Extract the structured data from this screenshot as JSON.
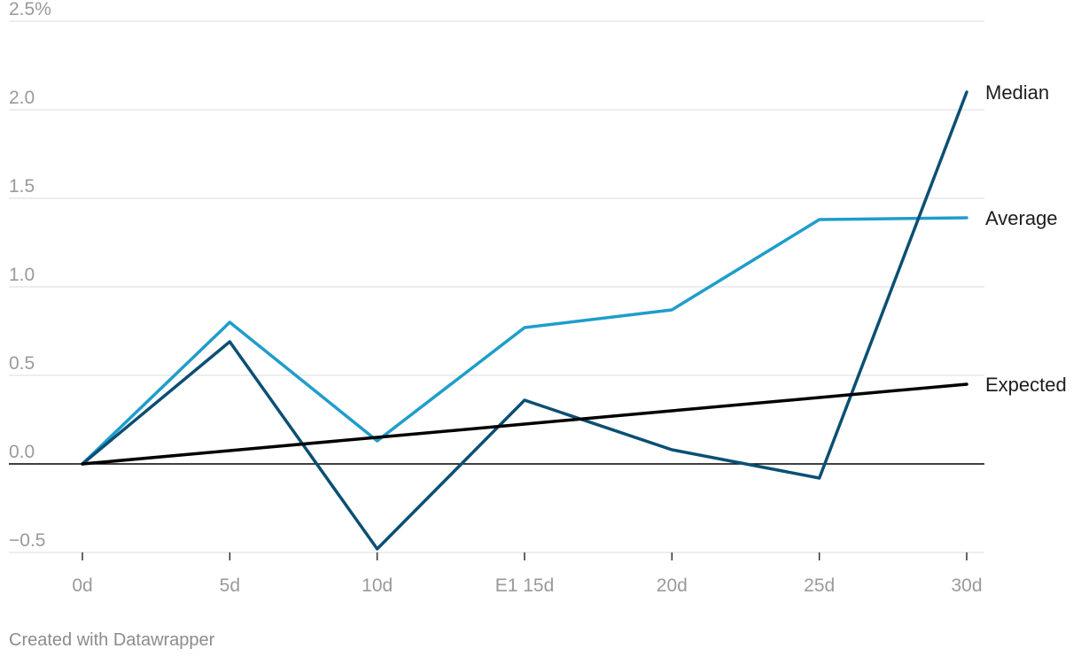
{
  "chart_data": {
    "type": "line",
    "categories": [
      "0d",
      "5d",
      "10d",
      "E1 15d",
      "20d",
      "25d",
      "30d"
    ],
    "y_ticks": [
      "2.5%",
      "2.0",
      "1.5",
      "1.0",
      "0.5",
      "0.0",
      "−0.5"
    ],
    "ylim": [
      -0.5,
      2.5
    ],
    "y_unit": "%",
    "grid": true,
    "legend": "direct labels at right end of lines",
    "series": [
      {
        "name": "Median",
        "color": "#0b4f73",
        "values": [
          0,
          0.69,
          -0.48,
          0.36,
          0.08,
          -0.08,
          2.1
        ]
      },
      {
        "name": "Average",
        "color": "#1f9dcb",
        "values": [
          0,
          0.8,
          0.13,
          0.77,
          0.87,
          1.38,
          1.39
        ]
      },
      {
        "name": "Expected",
        "color": "#000000",
        "values": [
          0,
          0.075,
          0.15,
          0.225,
          0.3,
          0.375,
          0.45
        ]
      }
    ]
  },
  "credit": "Created with Datawrapper"
}
